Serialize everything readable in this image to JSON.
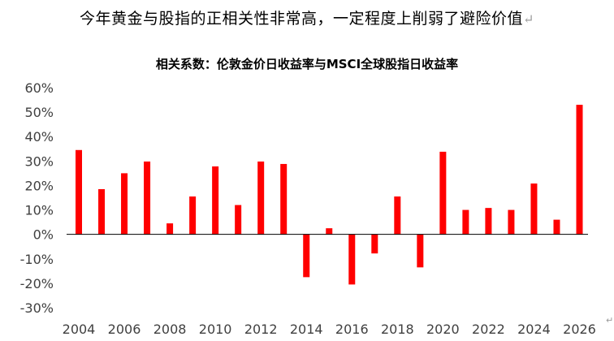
{
  "headline": "今年黄金与股指的正相关性非常高，一定程度上削弱了避险价值",
  "return_mark": "↵",
  "corner_mark": "↵",
  "chart_data": {
    "type": "bar",
    "title": "相关系数：伦敦金价日收益率与MSCI全球股指日收益率",
    "xlabel": "",
    "ylabel": "",
    "bar_color": "#ff0000",
    "y_unit": "%",
    "ylim": [
      -30,
      60
    ],
    "y_ticks": [
      -30,
      -20,
      -10,
      0,
      10,
      20,
      30,
      40,
      50,
      60
    ],
    "x_tick_labels": [
      "2004",
      "2006",
      "2008",
      "2010",
      "2012",
      "2014",
      "2016",
      "2018",
      "2020",
      "2022",
      "2024",
      "2026"
    ],
    "categories": [
      2004,
      2005,
      2006,
      2007,
      2008,
      2009,
      2010,
      2011,
      2012,
      2013,
      2014,
      2015,
      2016,
      2017,
      2018,
      2019,
      2020,
      2021,
      2022,
      2023,
      2024,
      2025,
      2026
    ],
    "values": [
      34.5,
      18.5,
      25,
      29.8,
      4.5,
      15.5,
      27.8,
      12,
      29.8,
      28.8,
      -17.5,
      2.5,
      -20.5,
      -7.8,
      15.5,
      -13.5,
      33.8,
      10,
      10.8,
      10,
      20.8,
      6,
      53
    ]
  }
}
